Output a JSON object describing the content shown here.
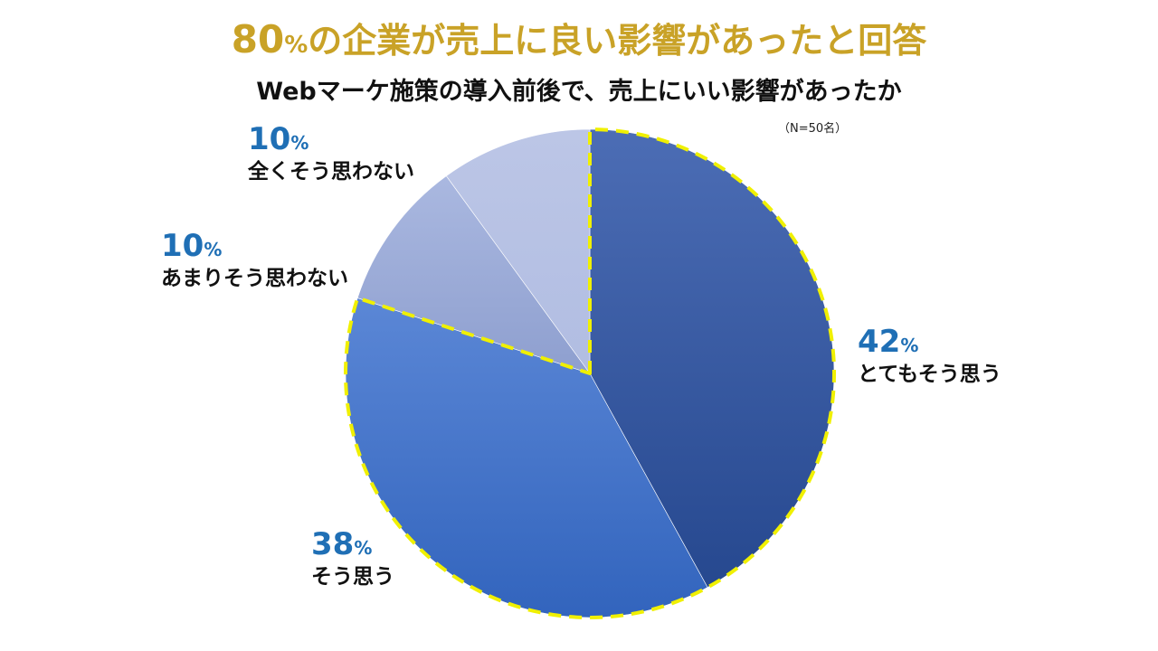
{
  "headline": {
    "number": "80",
    "percent_sign": "%",
    "text": "の企業が売上に良い影響があったと回答"
  },
  "colors": {
    "headline": "#c9a227",
    "percent_labels": "#1f6fb5",
    "highlight_border": "#f0f000"
  },
  "chart_data": {
    "type": "pie",
    "title": "Webマーケ施策の導入前後で、売上にいい影響があったか",
    "note": "（N=50名）",
    "start_angle_deg": 0,
    "direction": "clockwise",
    "slices": [
      {
        "label": "とてもそう思う",
        "value": 42,
        "value_label": "42",
        "unit": "%",
        "color_light": "#4c6db5",
        "color_dark": "#26488f",
        "highlighted": true
      },
      {
        "label": "そう思う",
        "value": 38,
        "value_label": "38",
        "unit": "%",
        "color_light": "#5b87d6",
        "color_dark": "#3264bd",
        "highlighted": true
      },
      {
        "label": "あまりそう思わない",
        "value": 10,
        "value_label": "10",
        "unit": "%",
        "color_light": "#aab8e0",
        "color_dark": "#8e9fcf",
        "highlighted": false
      },
      {
        "label": "全くそう思わない",
        "value": 10,
        "value_label": "10",
        "unit": "%",
        "color_light": "#bcc6e6",
        "color_dark": "#b1bde2",
        "highlighted": false
      }
    ]
  }
}
